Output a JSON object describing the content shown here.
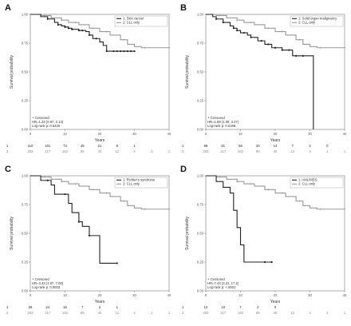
{
  "chart_data": [
    {
      "panel": "A",
      "type": "line",
      "xlabel": "Years",
      "ylabel": "Survival probability",
      "xlim": [
        0,
        40
      ],
      "ylim": [
        0,
        1
      ],
      "xticks": [
        "0",
        "10",
        "20",
        "30",
        "40"
      ],
      "yticks": [
        "0.00",
        "0.25",
        "0.50",
        "0.75",
        "1.00"
      ],
      "legend": [
        "1: Skin cancer",
        "2: CLL only"
      ],
      "legend_position": "top-right",
      "censored_label": "+ Censored",
      "stat_lines": [
        "HR=1.23 (0.67, 2.14)",
        "Log-rank p: 0.5420"
      ],
      "series": [
        {
          "color": "#222222",
          "x": [
            0,
            2,
            3,
            5,
            7,
            8,
            9,
            10,
            11,
            12,
            14,
            16,
            17,
            18,
            20,
            21,
            22,
            24,
            25,
            26,
            27,
            28,
            29,
            30
          ],
          "y": [
            1.0,
            1.0,
            0.98,
            0.96,
            0.93,
            0.91,
            0.9,
            0.89,
            0.88,
            0.87,
            0.86,
            0.85,
            0.82,
            0.79,
            0.76,
            0.73,
            0.68,
            0.68,
            0.68,
            0.68,
            0.68,
            0.68,
            0.68,
            0.68
          ],
          "censor_x": [
            5,
            8,
            10,
            11,
            12,
            14,
            15,
            17,
            19,
            22,
            24,
            25,
            26,
            27,
            28,
            29,
            30
          ]
        },
        {
          "color": "#999999",
          "x": [
            0,
            3,
            6,
            9,
            11,
            14,
            17,
            20,
            23,
            26,
            28,
            30,
            32,
            40
          ],
          "y": [
            1.0,
            0.99,
            0.97,
            0.95,
            0.93,
            0.91,
            0.88,
            0.85,
            0.82,
            0.78,
            0.74,
            0.72,
            0.71,
            0.71
          ],
          "censor_x": [
            4,
            9,
            13,
            18,
            22,
            27,
            33,
            40
          ]
        }
      ],
      "risk_table": {
        "times": [
          "0",
          "5",
          "10",
          "15",
          "20",
          "25",
          "30",
          "35",
          "40"
        ],
        "rows": [
          [
            "110",
            "101",
            "73",
            "49",
            "21",
            "8",
            "1",
            "",
            ""
          ],
          [
            "263",
            "217",
            "162",
            "89",
            "40",
            "12",
            "4",
            "1",
            "1"
          ]
        ]
      }
    },
    {
      "panel": "B",
      "type": "line",
      "xlabel": "Years",
      "ylabel": "Survival probability",
      "xlim": [
        0,
        40
      ],
      "ylim": [
        0,
        1
      ],
      "xticks": [
        "0",
        "10",
        "20",
        "30",
        "40"
      ],
      "yticks": [
        "0.00",
        "0.25",
        "0.50",
        "0.75",
        "1.00"
      ],
      "legend": [
        "1: Solid organ malignancy",
        "2: CLL only"
      ],
      "legend_position": "top-right",
      "censored_label": "+ Censored",
      "stat_lines": [
        "HR=1.89 (1.09, 3.27)",
        "Log-rank p: 0.0186"
      ],
      "series": [
        {
          "color": "#222222",
          "x": [
            0,
            2,
            3,
            5,
            7,
            8,
            9,
            10,
            12,
            13,
            15,
            17,
            19,
            22,
            25,
            30,
            31,
            31
          ],
          "y": [
            1.0,
            0.98,
            0.96,
            0.93,
            0.9,
            0.88,
            0.86,
            0.84,
            0.82,
            0.8,
            0.77,
            0.74,
            0.71,
            0.69,
            0.64,
            0.64,
            0.64,
            0.0
          ],
          "censor_x": [
            3,
            5,
            8,
            9,
            11,
            13,
            16,
            18,
            20,
            22,
            24,
            26,
            28
          ]
        },
        {
          "color": "#999999",
          "x": [
            0,
            3,
            6,
            9,
            11,
            14,
            17,
            20,
            23,
            26,
            28,
            30,
            32,
            40
          ],
          "y": [
            1.0,
            0.99,
            0.97,
            0.95,
            0.93,
            0.91,
            0.88,
            0.85,
            0.82,
            0.78,
            0.74,
            0.72,
            0.71,
            0.71
          ],
          "censor_x": [
            4,
            9,
            13,
            18,
            22,
            27,
            33,
            40
          ]
        }
      ],
      "risk_table": {
        "times": [
          "0",
          "5",
          "10",
          "15",
          "20",
          "25",
          "30",
          "35",
          "40"
        ],
        "rows": [
          [
            "96",
            "81",
            "56",
            "33",
            "14",
            "7",
            "2",
            "0",
            ""
          ],
          [
            "263",
            "217",
            "162",
            "89",
            "40",
            "12",
            "4",
            "1",
            "1"
          ]
        ]
      }
    },
    {
      "panel": "C",
      "type": "line",
      "xlabel": "Years",
      "ylabel": "Survival probability",
      "xlim": [
        0,
        40
      ],
      "ylim": [
        0,
        1
      ],
      "xticks": [
        "0",
        "10",
        "20",
        "30",
        "40"
      ],
      "yticks": [
        "0.00",
        "0.25",
        "0.50",
        "0.75",
        "1.00"
      ],
      "legend": [
        "1: Richter's syndrome",
        "2: CLL only"
      ],
      "legend_position": "top-right",
      "censored_label": "+ Censored",
      "stat_lines": [
        "HR=3.43 (1.67, 7.00)",
        "Log-rank p: 0.0003"
      ],
      "series": [
        {
          "color": "#222222",
          "x": [
            0,
            3,
            5,
            6,
            7,
            10,
            11,
            12,
            14,
            15,
            17,
            20,
            20,
            24,
            25
          ],
          "y": [
            1.0,
            0.96,
            0.96,
            0.92,
            0.84,
            0.84,
            0.76,
            0.68,
            0.6,
            0.56,
            0.48,
            0.48,
            0.24,
            0.24,
            0.24
          ],
          "censor_x": [
            5,
            10,
            14,
            17,
            25
          ]
        },
        {
          "color": "#999999",
          "x": [
            0,
            3,
            6,
            9,
            11,
            14,
            17,
            20,
            23,
            26,
            28,
            30,
            32,
            40
          ],
          "y": [
            1.0,
            0.99,
            0.97,
            0.95,
            0.93,
            0.91,
            0.88,
            0.85,
            0.82,
            0.78,
            0.74,
            0.72,
            0.71,
            0.71
          ],
          "censor_x": [
            4,
            9,
            13,
            18,
            22,
            27,
            33,
            40
          ]
        }
      ],
      "risk_table": {
        "times": [
          "0",
          "5",
          "10",
          "15",
          "20",
          "25",
          "30",
          "35",
          "40"
        ],
        "rows": [
          [
            "28",
            "24",
            "16",
            "7",
            "2",
            "1",
            "",
            "",
            ""
          ],
          [
            "263",
            "217",
            "162",
            "89",
            "40",
            "12",
            "4",
            "1",
            "1"
          ]
        ]
      }
    },
    {
      "panel": "D",
      "type": "line",
      "xlabel": "Years",
      "ylabel": "Survival probability",
      "xlim": [
        0,
        40
      ],
      "ylim": [
        0,
        1
      ],
      "xticks": [
        "0",
        "10",
        "20",
        "30",
        "40"
      ],
      "yticks": [
        "0.00",
        "0.25",
        "0.50",
        "0.75",
        "1.00"
      ],
      "legend": [
        "1: AML/MDS",
        "2: CLL only"
      ],
      "legend_position": "top-right",
      "censored_label": "+ Censored",
      "stat_lines": [
        "HR=7.44 (3.21, 17.2)",
        "Log-rank p: <.0001"
      ],
      "series": [
        {
          "color": "#222222",
          "x": [
            0,
            3,
            5,
            7,
            8,
            9,
            10,
            11,
            12,
            15,
            17,
            19
          ],
          "y": [
            1.0,
            0.95,
            0.9,
            0.85,
            0.7,
            0.55,
            0.4,
            0.25,
            0.25,
            0.25,
            0.25,
            0.25
          ],
          "censor_x": [
            17,
            19
          ]
        },
        {
          "color": "#999999",
          "x": [
            0,
            3,
            6,
            9,
            11,
            14,
            17,
            20,
            23,
            26,
            28,
            30,
            32,
            40
          ],
          "y": [
            1.0,
            0.99,
            0.97,
            0.95,
            0.93,
            0.91,
            0.88,
            0.85,
            0.82,
            0.78,
            0.74,
            0.72,
            0.71,
            0.71
          ],
          "censor_x": [
            4,
            9,
            13,
            18,
            22,
            27,
            33,
            40
          ]
        }
      ],
      "risk_table": {
        "times": [
          "0",
          "5",
          "10",
          "15",
          "20",
          "25",
          "30",
          "35",
          "40"
        ],
        "rows": [
          [
            "12",
            "10",
            "7",
            "2",
            "0",
            "",
            "",
            "",
            ""
          ],
          [
            "263",
            "217",
            "162",
            "89",
            "40",
            "12",
            "4",
            "1",
            "1"
          ]
        ]
      }
    }
  ]
}
